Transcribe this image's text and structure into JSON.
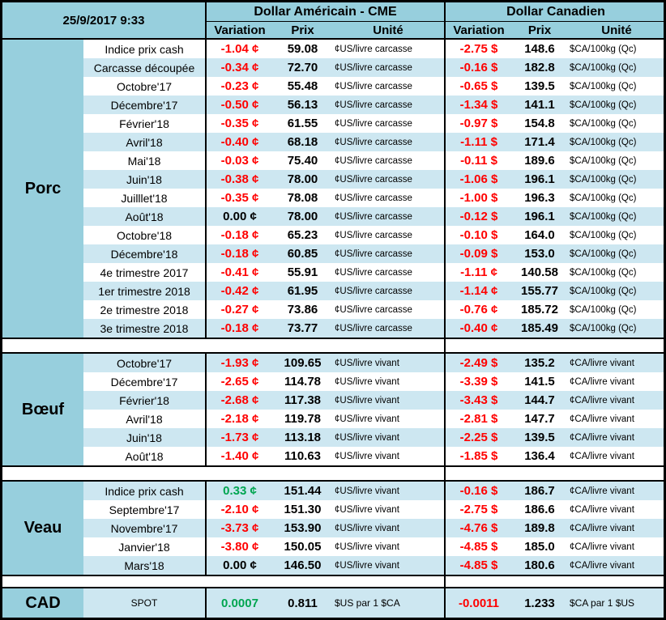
{
  "header": {
    "date": "25/9/2017 9:33",
    "groups": [
      {
        "title": "Dollar Américain - CME",
        "columns": [
          "Variation",
          "Prix",
          "Unité"
        ]
      },
      {
        "title": "Dollar Canadien",
        "columns": [
          "Variation",
          "Prix",
          "Unité"
        ]
      }
    ]
  },
  "sections": [
    {
      "name": "Porc",
      "rows": [
        {
          "label": "Indice prix cash",
          "us": {
            "variation": "-1.04 ¢",
            "prix": "59.08",
            "unite": "¢US/livre carcasse"
          },
          "ca": {
            "variation": "-2.75 $",
            "prix": "148.6",
            "unite": "$CA/100kg (Qc)"
          }
        },
        {
          "label": "Carcasse découpée",
          "us": {
            "variation": "-0.34 ¢",
            "prix": "72.70",
            "unite": "¢US/livre carcasse"
          },
          "ca": {
            "variation": "-0.16 $",
            "prix": "182.8",
            "unite": "$CA/100kg (Qc)"
          }
        },
        {
          "label": "Octobre'17",
          "us": {
            "variation": "-0.23 ¢",
            "prix": "55.48",
            "unite": "¢US/livre carcasse"
          },
          "ca": {
            "variation": "-0.65 $",
            "prix": "139.5",
            "unite": "$CA/100kg (Qc)"
          }
        },
        {
          "label": "Décembre'17",
          "us": {
            "variation": "-0.50 ¢",
            "prix": "56.13",
            "unite": "¢US/livre carcasse"
          },
          "ca": {
            "variation": "-1.34 $",
            "prix": "141.1",
            "unite": "$CA/100kg (Qc)"
          }
        },
        {
          "label": "Février'18",
          "us": {
            "variation": "-0.35 ¢",
            "prix": "61.55",
            "unite": "¢US/livre carcasse"
          },
          "ca": {
            "variation": "-0.97 $",
            "prix": "154.8",
            "unite": "$CA/100kg (Qc)"
          }
        },
        {
          "label": "Avril'18",
          "us": {
            "variation": "-0.40 ¢",
            "prix": "68.18",
            "unite": "¢US/livre carcasse"
          },
          "ca": {
            "variation": "-1.11 $",
            "prix": "171.4",
            "unite": "$CA/100kg (Qc)"
          }
        },
        {
          "label": "Mai'18",
          "us": {
            "variation": "-0.03 ¢",
            "prix": "75.40",
            "unite": "¢US/livre carcasse"
          },
          "ca": {
            "variation": "-0.11 $",
            "prix": "189.6",
            "unite": "$CA/100kg (Qc)"
          }
        },
        {
          "label": "Juin'18",
          "us": {
            "variation": "-0.38 ¢",
            "prix": "78.00",
            "unite": "¢US/livre carcasse"
          },
          "ca": {
            "variation": "-1.06 $",
            "prix": "196.1",
            "unite": "$CA/100kg (Qc)"
          }
        },
        {
          "label": "Juilllet'18",
          "us": {
            "variation": "-0.35 ¢",
            "prix": "78.08",
            "unite": "¢US/livre carcasse"
          },
          "ca": {
            "variation": "-1.00 $",
            "prix": "196.3",
            "unite": "$CA/100kg (Qc)"
          }
        },
        {
          "label": "Août'18",
          "us": {
            "variation": "0.00 ¢",
            "prix": "78.00",
            "unite": "¢US/livre carcasse"
          },
          "ca": {
            "variation": "-0.12 $",
            "prix": "196.1",
            "unite": "$CA/100kg (Qc)"
          }
        },
        {
          "label": "Octobre'18",
          "us": {
            "variation": "-0.18 ¢",
            "prix": "65.23",
            "unite": "¢US/livre carcasse"
          },
          "ca": {
            "variation": "-0.10 $",
            "prix": "164.0",
            "unite": "$CA/100kg (Qc)"
          }
        },
        {
          "label": "Décembre'18",
          "us": {
            "variation": "-0.18 ¢",
            "prix": "60.85",
            "unite": "¢US/livre carcasse"
          },
          "ca": {
            "variation": "-0.09 $",
            "prix": "153.0",
            "unite": "$CA/100kg (Qc)"
          }
        },
        {
          "label": "4e trimestre 2017",
          "us": {
            "variation": "-0.41 ¢",
            "prix": "55.91",
            "unite": "¢US/livre carcasse"
          },
          "ca": {
            "variation": "-1.11 ¢",
            "prix": "140.58",
            "unite": "$CA/100kg (Qc)"
          }
        },
        {
          "label": "1er trimestre 2018",
          "us": {
            "variation": "-0.42 ¢",
            "prix": "61.95",
            "unite": "¢US/livre carcasse"
          },
          "ca": {
            "variation": "-1.14 ¢",
            "prix": "155.77",
            "unite": "$CA/100kg (Qc)"
          }
        },
        {
          "label": "2e trimestre 2018",
          "us": {
            "variation": "-0.27 ¢",
            "prix": "73.86",
            "unite": "¢US/livre carcasse"
          },
          "ca": {
            "variation": "-0.76 ¢",
            "prix": "185.72",
            "unite": "$CA/100kg (Qc)"
          }
        },
        {
          "label": "3e trimestre 2018",
          "us": {
            "variation": "-0.18 ¢",
            "prix": "73.77",
            "unite": "¢US/livre carcasse"
          },
          "ca": {
            "variation": "-0.40 ¢",
            "prix": "185.49",
            "unite": "$CA/100kg (Qc)"
          }
        }
      ]
    },
    {
      "name": "Bœuf",
      "rows": [
        {
          "label": "Octobre'17",
          "us": {
            "variation": "-1.93 ¢",
            "prix": "109.65",
            "unite": "¢US/livre vivant"
          },
          "ca": {
            "variation": "-2.49 $",
            "prix": "135.2",
            "unite": "¢CA/livre vivant"
          }
        },
        {
          "label": "Décembre'17",
          "us": {
            "variation": "-2.65 ¢",
            "prix": "114.78",
            "unite": "¢US/livre vivant"
          },
          "ca": {
            "variation": "-3.39 $",
            "prix": "141.5",
            "unite": "¢CA/livre vivant"
          }
        },
        {
          "label": "Février'18",
          "us": {
            "variation": "-2.68 ¢",
            "prix": "117.38",
            "unite": "¢US/livre vivant"
          },
          "ca": {
            "variation": "-3.43 $",
            "prix": "144.7",
            "unite": "¢CA/livre vivant"
          }
        },
        {
          "label": "Avril'18",
          "us": {
            "variation": "-2.18 ¢",
            "prix": "119.78",
            "unite": "¢US/livre vivant"
          },
          "ca": {
            "variation": "-2.81 $",
            "prix": "147.7",
            "unite": "¢CA/livre vivant"
          }
        },
        {
          "label": "Juin'18",
          "us": {
            "variation": "-1.73 ¢",
            "prix": "113.18",
            "unite": "¢US/livre vivant"
          },
          "ca": {
            "variation": "-2.25 $",
            "prix": "139.5",
            "unite": "¢CA/livre vivant"
          }
        },
        {
          "label": "Août'18",
          "us": {
            "variation": "-1.40 ¢",
            "prix": "110.63",
            "unite": "¢US/livre vivant"
          },
          "ca": {
            "variation": "-1.85 $",
            "prix": "136.4",
            "unite": "¢CA/livre vivant"
          }
        }
      ]
    },
    {
      "name": "Veau",
      "rows": [
        {
          "label": "Indice prix cash",
          "us": {
            "variation": "0.33 ¢",
            "prix": "151.44",
            "unite": "¢US/livre vivant"
          },
          "ca": {
            "variation": "-0.16 $",
            "prix": "186.7",
            "unite": "¢CA/livre vivant"
          }
        },
        {
          "label": "Septembre'17",
          "us": {
            "variation": "-2.10 ¢",
            "prix": "151.30",
            "unite": "¢US/livre vivant"
          },
          "ca": {
            "variation": "-2.75 $",
            "prix": "186.6",
            "unite": "¢CA/livre vivant"
          }
        },
        {
          "label": "Novembre'17",
          "us": {
            "variation": "-3.73 ¢",
            "prix": "153.90",
            "unite": "¢US/livre vivant"
          },
          "ca": {
            "variation": "-4.76 $",
            "prix": "189.8",
            "unite": "¢CA/livre vivant"
          }
        },
        {
          "label": "Janvier'18",
          "us": {
            "variation": "-3.80 ¢",
            "prix": "150.05",
            "unite": "¢US/livre vivant"
          },
          "ca": {
            "variation": "-4.85 $",
            "prix": "185.0",
            "unite": "¢CA/livre vivant"
          }
        },
        {
          "label": "Mars'18",
          "us": {
            "variation": "0.00 ¢",
            "prix": "146.50",
            "unite": "¢US/livre vivant"
          },
          "ca": {
            "variation": "-4.85 $",
            "prix": "180.6",
            "unite": "¢CA/livre vivant"
          }
        }
      ]
    },
    {
      "name": "CAD",
      "rows": [
        {
          "label": "SPOT",
          "us": {
            "variation": "0.0007",
            "prix": "0.811",
            "unite": "$US par 1 $CA"
          },
          "ca": {
            "variation": "-0.0011",
            "prix": "1.233",
            "unite": "$CA par 1 $US"
          }
        }
      ]
    }
  ],
  "colors": {
    "header_blue": "#97cfdd",
    "stripe_blue": "#cde7f1",
    "negative_red": "#ff0000",
    "positive_green": "#00a550"
  }
}
